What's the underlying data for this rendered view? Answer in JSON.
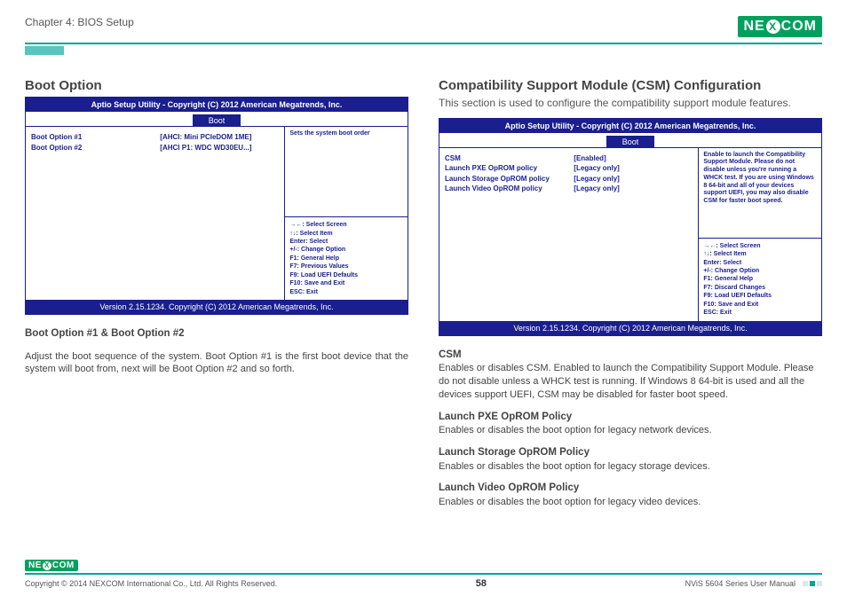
{
  "header": {
    "chapter": "Chapter 4: BIOS Setup",
    "brand_left": "NE",
    "brand_x": "X",
    "brand_right": "COM"
  },
  "bios_common": {
    "title": "Aptio Setup Utility - Copyright (C) 2012 American Megatrends, Inc.",
    "tab": "Boot",
    "footer": "Version 2.15.1234. Copyright (C) 2012 American Megatrends, Inc.",
    "keys": [
      "→←: Select Screen",
      "↑↓: Select Item",
      "Enter: Select",
      "+/-: Change Option",
      "F1: General Help"
    ]
  },
  "left": {
    "title": "Boot Option",
    "rows": [
      {
        "k": "Boot Option #1",
        "v": "[AHCI: Mini PCIeDOM 1ME]"
      },
      {
        "k": "Boot Option #2",
        "v": "[AHCI P1: WDC WD30EU...]"
      }
    ],
    "help": "Sets the system boot order",
    "extra_keys": [
      "F7: Previous Values",
      "F9: Load UEFI Defaults",
      "F10: Save and Exit",
      "ESC: Exit"
    ],
    "sub_title": "Boot Option #1 & Boot Option #2",
    "sub_text": "Adjust the boot sequence of the system. Boot Option #1 is the first boot device that the system will boot from, next will be Boot Option #2 and so forth."
  },
  "right": {
    "title": "Compatibility Support Module (CSM) Configuration",
    "desc": "This section is used to configure the compatibility support module features.",
    "rows": [
      {
        "k": "CSM",
        "v": "[Enabled]"
      },
      {
        "k": "Launch PXE OpROM policy",
        "v": "[Legacy only]"
      },
      {
        "k": "Launch Storage OpROM policy",
        "v": "[Legacy only]"
      },
      {
        "k": "Launch Video OpROM policy",
        "v": "[Legacy only]"
      }
    ],
    "help": "Enable to launch the Compatibility Support Module. Please do not disable unless you're running a WHCK test. If you are using Windows 8 64-bit and all of your devices support UEFI, you may also disable CSM for faster boot speed.",
    "extra_keys": [
      "F7: Discard Changes",
      "F9: Load UEFI Defaults",
      "F10: Save and Exit",
      "ESC: Exit"
    ],
    "subs": [
      {
        "h": "CSM",
        "t": "Enables or disables CSM. Enabled to launch the Compatibility Support Module. Please do not disable unless a WHCK test is running. If Windows 8 64-bit is used and all the devices support UEFI, CSM may be disabled for faster boot speed."
      },
      {
        "h": "Launch PXE OpROM Policy",
        "t": "Enables or disables the boot option for legacy network devices."
      },
      {
        "h": "Launch Storage OpROM Policy",
        "t": "Enables or disables the boot option for legacy storage devices."
      },
      {
        "h": "Launch Video OpROM Policy",
        "t": "Enables or disables the boot option for legacy video devices."
      }
    ]
  },
  "footer": {
    "copyright": "Copyright © 2014 NEXCOM International Co., Ltd. All Rights Reserved.",
    "page": "58",
    "manual": "NViS 5604 Series User Manual"
  }
}
